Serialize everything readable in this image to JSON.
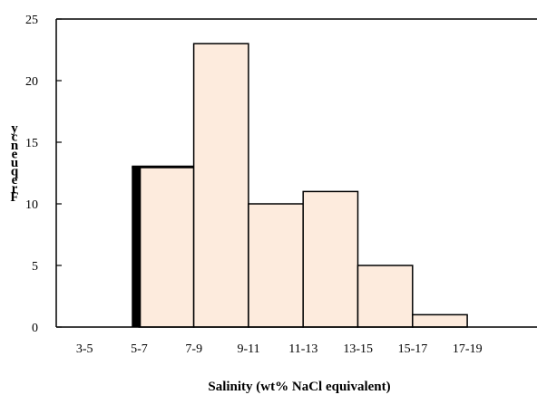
{
  "chart_data": {
    "type": "bar",
    "title": "",
    "xlabel": "Salinity (wt% NaCl equivalent)",
    "ylabel": "Frequency",
    "categories": [
      "3-5",
      "5-7",
      "7-9",
      "9-11",
      "11-13",
      "13-15",
      "15-17",
      "17-19"
    ],
    "values": [
      0,
      13,
      23,
      10,
      11,
      5,
      1,
      0
    ],
    "ylim": [
      0,
      25
    ],
    "yticks": [
      0,
      5,
      10,
      15,
      20,
      25
    ],
    "grid": false,
    "legend": "none",
    "bar_fill": "#FDEBDD",
    "bar_stroke": "#000000"
  }
}
